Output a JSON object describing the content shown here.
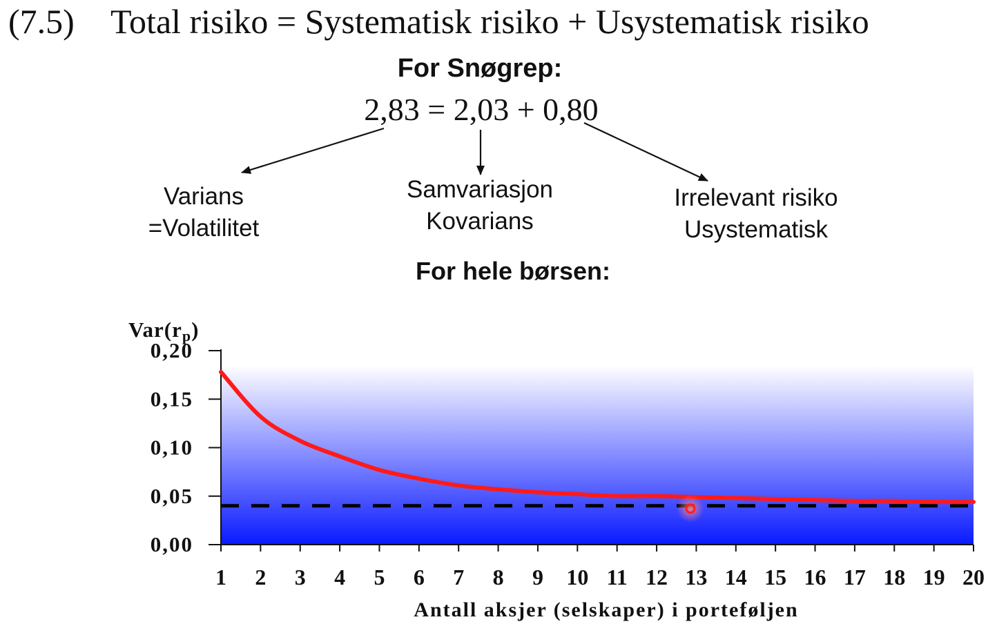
{
  "equation": {
    "number": "(7.5)",
    "text": "Total risiko = Systematisk risiko + Usystematisk risiko"
  },
  "sno": {
    "title": "For Snøgrep:",
    "equation": "2,83 = 2,03 + 0,80"
  },
  "labels": {
    "left": [
      "Varians",
      "=Volatilitet"
    ],
    "middle": [
      "Samvariasjon",
      "Kovarians"
    ],
    "right": [
      "Irrelevant risiko",
      "Usystematisk"
    ]
  },
  "borsen_title": "For hele børsen:",
  "colors": {
    "curve": "#ff1a1a",
    "fill_top": "#ffffff",
    "fill_bottom": "#0a1aff",
    "dashed_line": "#000000",
    "cursor": "#ff2020"
  },
  "chart_data": {
    "type": "line",
    "ylabel": "Var(r",
    "ylabel_sub": "p",
    "ylabel_close": ")",
    "xlabel": "Antall aksjer (selskaper) i porteføljen",
    "ylim": [
      0,
      0.2
    ],
    "yticks": [
      "0,00",
      "0,05",
      "0,10",
      "0,15",
      "0,20"
    ],
    "ytick_values": [
      0,
      0.05,
      0.1,
      0.15,
      0.2
    ],
    "x": [
      1,
      2,
      3,
      4,
      5,
      6,
      7,
      8,
      9,
      10,
      11,
      12,
      13,
      14,
      15,
      16,
      17,
      18,
      19,
      20
    ],
    "xticks": [
      "1",
      "2",
      "3",
      "4",
      "5",
      "6",
      "7",
      "8",
      "9",
      "10",
      "11",
      "12",
      "13",
      "14",
      "15",
      "16",
      "17",
      "18",
      "19",
      "20"
    ],
    "series": [
      {
        "values": [
          0.178,
          0.132,
          0.107,
          0.091,
          0.077,
          0.068,
          0.061,
          0.057,
          0.054,
          0.052,
          0.05,
          0.05,
          0.049,
          0.048,
          0.047,
          0.046,
          0.045,
          0.045,
          0.044,
          0.044
        ]
      }
    ],
    "reference_line": {
      "value": 0.04,
      "style": "dashed"
    },
    "area_fill": "vertical gradient white to blue",
    "grid": false
  }
}
